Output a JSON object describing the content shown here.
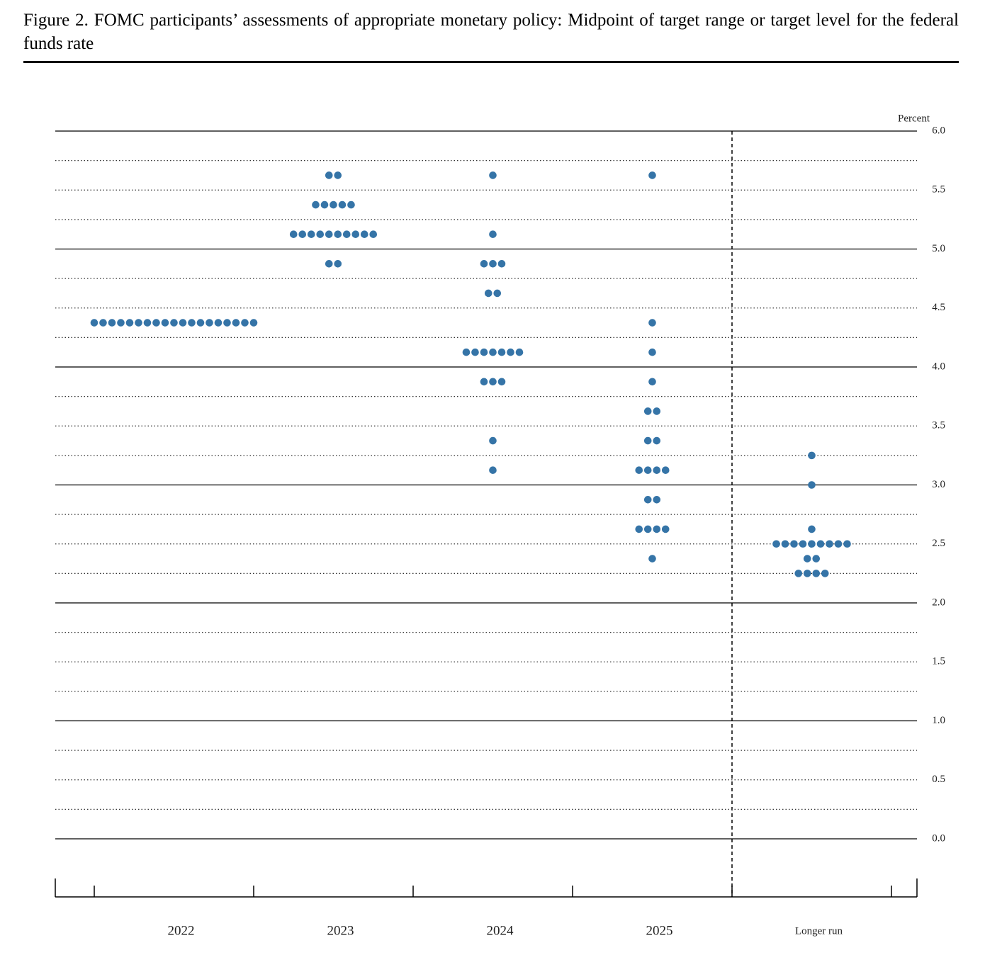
{
  "chart_data": {
    "type": "dot",
    "title": "Figure 2.  FOMC participants’ assessments of appropriate monetary policy: Midpoint of target range or target level for the federal funds rate",
    "y_label": "Percent",
    "color": "#3574a7",
    "categories": [
      "2022",
      "2023",
      "2024",
      "2025",
      "Longer run"
    ],
    "values": [
      [
        4.375,
        4.375,
        4.375,
        4.375,
        4.375,
        4.375,
        4.375,
        4.375,
        4.375,
        4.375,
        4.375,
        4.375,
        4.375,
        4.375,
        4.375,
        4.375,
        4.375,
        4.375,
        4.375
      ],
      [
        5.625,
        5.625,
        5.375,
        5.375,
        5.375,
        5.375,
        5.375,
        5.125,
        5.125,
        5.125,
        5.125,
        5.125,
        5.125,
        5.125,
        5.125,
        5.125,
        5.125,
        4.875,
        4.875
      ],
      [
        5.625,
        5.125,
        4.875,
        4.875,
        4.875,
        4.625,
        4.625,
        4.125,
        4.125,
        4.125,
        4.125,
        4.125,
        4.125,
        4.125,
        3.875,
        3.875,
        3.875,
        3.375,
        3.125
      ],
      [
        5.625,
        4.375,
        4.125,
        3.875,
        3.625,
        3.625,
        3.375,
        3.375,
        3.125,
        3.125,
        3.125,
        3.125,
        2.875,
        2.875,
        2.625,
        2.625,
        2.625,
        2.625,
        2.375
      ],
      [
        3.25,
        3.0,
        2.625,
        2.5,
        2.5,
        2.5,
        2.5,
        2.5,
        2.5,
        2.5,
        2.5,
        2.5,
        2.375,
        2.375,
        2.25,
        2.25,
        2.25,
        2.25
      ]
    ],
    "ylim": [
      0,
      6
    ],
    "yticks": [
      {
        "value": 0,
        "label": "0.0"
      },
      {
        "value": 0.5,
        "label": "0.5"
      },
      {
        "value": 1,
        "label": "1.0"
      },
      {
        "value": 1.5,
        "label": "1.5"
      },
      {
        "value": 2,
        "label": "2.0"
      },
      {
        "value": 2.5,
        "label": "2.5"
      },
      {
        "value": 3,
        "label": "3.0"
      },
      {
        "value": 3.5,
        "label": "3.5"
      },
      {
        "value": 4,
        "label": "4.0"
      },
      {
        "value": 4.5,
        "label": "4.5"
      },
      {
        "value": 5,
        "label": "5.0"
      },
      {
        "value": 5.5,
        "label": "5.5"
      },
      {
        "value": 6,
        "label": "6.0"
      }
    ],
    "grid": true
  }
}
